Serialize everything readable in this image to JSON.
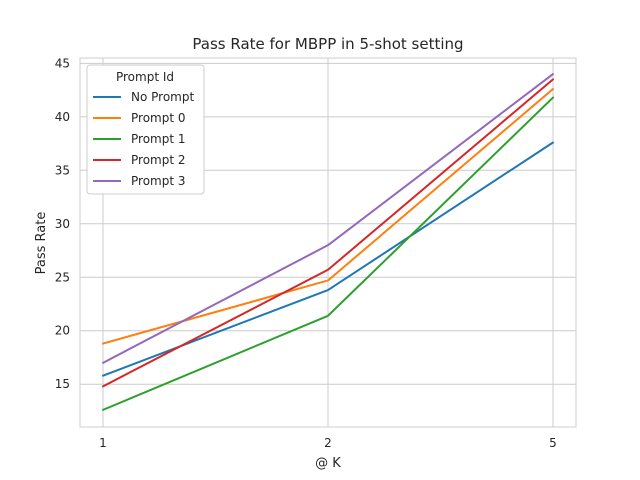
{
  "chart_data": {
    "type": "line",
    "title": "Pass Rate for MBPP in 5-shot setting",
    "xlabel": "@ K",
    "ylabel": "Pass Rate",
    "categories": [
      "1",
      "2",
      "5"
    ],
    "yticks": [
      15,
      20,
      25,
      30,
      35,
      40,
      45
    ],
    "ylim": [
      11,
      45.5
    ],
    "grid": true,
    "legend": {
      "title": "Prompt Id",
      "placement": "top-left"
    },
    "series": [
      {
        "name": "No Prompt",
        "color": "#1f77b4",
        "values": [
          15.8,
          23.8,
          37.6
        ]
      },
      {
        "name": "Prompt 0",
        "color": "#ff7f0e",
        "values": [
          18.8,
          24.7,
          42.6
        ]
      },
      {
        "name": "Prompt 1",
        "color": "#2ca02c",
        "values": [
          12.6,
          21.4,
          41.8
        ]
      },
      {
        "name": "Prompt 2",
        "color": "#d62728",
        "values": [
          14.8,
          25.7,
          43.5
        ]
      },
      {
        "name": "Prompt 3",
        "color": "#9467bd",
        "values": [
          17.0,
          28.0,
          44.0
        ]
      }
    ]
  }
}
